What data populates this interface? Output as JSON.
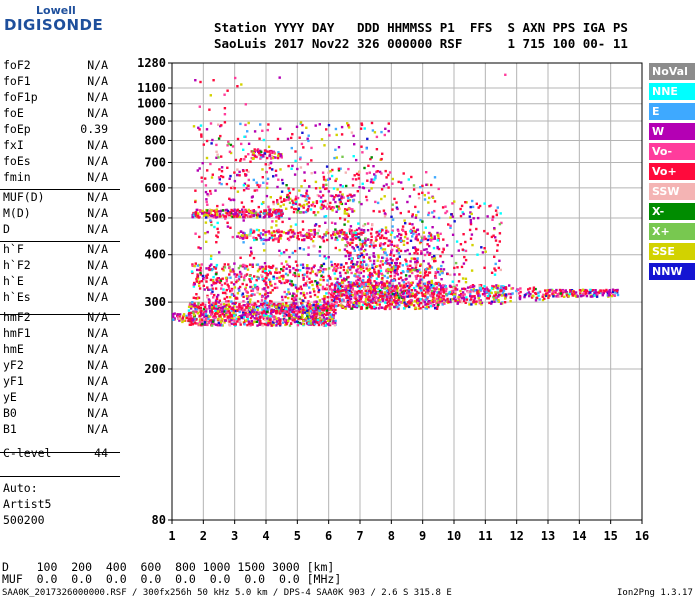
{
  "logo": {
    "top": "Lowell",
    "main": "DIGISONDE"
  },
  "header": {
    "line1": "Station YYYY DAY   DDD HHMMSS P1  FFS  S AXN PPS IGA PS",
    "line2": "SaoLuis 2017 Nov22 326 000000 RSF      1 715 100 00- 11"
  },
  "params": [
    {
      "name": "foF2",
      "value": "N/A"
    },
    {
      "name": "foF1",
      "value": "N/A"
    },
    {
      "name": "foF1p",
      "value": "N/A"
    },
    {
      "name": "foE",
      "value": "N/A"
    },
    {
      "name": "foEp",
      "value": "0.39"
    },
    {
      "name": "fxI",
      "value": "N/A"
    },
    {
      "name": "foEs",
      "value": "N/A"
    },
    {
      "name": "fmin",
      "value": "N/A"
    },
    {
      "name": "MUF(D)",
      "value": "N/A"
    },
    {
      "name": "M(D)",
      "value": "N/A"
    },
    {
      "name": "D",
      "value": "N/A"
    },
    {
      "name": "h`F",
      "value": "N/A"
    },
    {
      "name": "h`F2",
      "value": "N/A"
    },
    {
      "name": "h`E",
      "value": "N/A"
    },
    {
      "name": "h`Es",
      "value": "N/A"
    },
    {
      "name": "hmF2",
      "value": "N/A"
    },
    {
      "name": "hmF1",
      "value": "N/A"
    },
    {
      "name": "hmE",
      "value": "N/A"
    },
    {
      "name": "yF2",
      "value": "N/A"
    },
    {
      "name": "yF1",
      "value": "N/A"
    },
    {
      "name": "yE",
      "value": "N/A"
    },
    {
      "name": "B0",
      "value": "N/A"
    },
    {
      "name": "B1",
      "value": "N/A"
    },
    {
      "name": "C-level",
      "value": "44"
    }
  ],
  "auto": {
    "label": "Auto:",
    "artist": "Artist5",
    "version": "500200"
  },
  "legend": [
    {
      "label": "NoVal",
      "color": "#8c8c8c"
    },
    {
      "label": "NNE",
      "color": "#00ffff"
    },
    {
      "label": "E",
      "color": "#3ea9ff"
    },
    {
      "label": "W",
      "color": "#b400b4"
    },
    {
      "label": "Vo-",
      "color": "#ff3c9c"
    },
    {
      "label": "Vo+",
      "color": "#ff0a3c"
    },
    {
      "label": "SSW",
      "color": "#f4b4b4"
    },
    {
      "label": "X-",
      "color": "#008c00"
    },
    {
      "label": "X+",
      "color": "#78c850"
    },
    {
      "label": "SSE",
      "color": "#d2d200"
    },
    {
      "label": "NNW",
      "color": "#1414d2"
    }
  ],
  "footer": {
    "d_row": "D    100  200  400  600  800 1000 1500 3000 [km]",
    "muf_row": "MUF  0.0  0.0  0.0  0.0  0.0  0.0  0.0  0.0 [MHz]",
    "file_info": "SAA0K_2017326000000.RSF / 300fx256h 50 kHz 5.0 km / DPS-4 SAA0K 903 / 2.6 S 315.8 E",
    "version": "Ion2Png 1.3.17"
  },
  "chart_data": {
    "type": "scatter",
    "xlabel": "",
    "ylabel": "",
    "xlim": [
      1,
      16
    ],
    "ylim": [
      80,
      1280
    ],
    "y_scale": "log",
    "x_ticks": [
      1,
      2,
      3,
      4,
      5,
      6,
      7,
      8,
      9,
      10,
      11,
      12,
      13,
      14,
      15,
      16
    ],
    "y_ticks": [
      80,
      200,
      300,
      400,
      500,
      600,
      700,
      800,
      900,
      1000,
      1100,
      1280
    ],
    "grid": true,
    "regions": [
      {
        "x": [
          1.0,
          1.6
        ],
        "y": [
          268,
          282
        ],
        "n": 40
      },
      {
        "x": [
          1.5,
          6.2
        ],
        "y": [
          262,
          300
        ],
        "n": 1000
      },
      {
        "x": [
          6.0,
          9.5
        ],
        "y": [
          290,
          340
        ],
        "n": 600
      },
      {
        "x": [
          1.6,
          9.6
        ],
        "y": [
          300,
          380
        ],
        "n": 900
      },
      {
        "x": [
          9.5,
          11.8
        ],
        "y": [
          298,
          335
        ],
        "n": 250
      },
      {
        "x": [
          11.8,
          13.0
        ],
        "y": [
          305,
          330
        ],
        "n": 50
      },
      {
        "x": [
          12.9,
          15.2
        ],
        "y": [
          312,
          326
        ],
        "n": 160
      },
      {
        "x": [
          1.6,
          4.5
        ],
        "y": [
          505,
          530
        ],
        "n": 220
      },
      {
        "x": [
          4.3,
          6.8
        ],
        "y": [
          520,
          580
        ],
        "n": 120
      },
      {
        "x": [
          3.0,
          7.0
        ],
        "y": [
          440,
          470
        ],
        "n": 180
      },
      {
        "x": [
          6.5,
          9.5
        ],
        "y": [
          360,
          470
        ],
        "n": 300
      },
      {
        "x": [
          1.7,
          9.5
        ],
        "y": [
          380,
          680
        ],
        "n": 450
      },
      {
        "x": [
          1.7,
          8.0
        ],
        "y": [
          600,
          900
        ],
        "n": 200
      },
      {
        "x": [
          9.5,
          11.5
        ],
        "y": [
          340,
          560
        ],
        "n": 120
      },
      {
        "x": [
          3.5,
          4.5
        ],
        "y": [
          720,
          760
        ],
        "n": 60
      },
      {
        "x": [
          1.5,
          3.5
        ],
        "y": [
          850,
          1180
        ],
        "n": 12
      }
    ],
    "points": [
      {
        "x": 2.65,
        "y": 980
      },
      {
        "x": 2.65,
        "y": 945
      },
      {
        "x": 2.65,
        "y": 900
      },
      {
        "x": 3.05,
        "y": 1120
      },
      {
        "x": 2.2,
        "y": 1060
      },
      {
        "x": 11.6,
        "y": 1200
      },
      {
        "x": 4.4,
        "y": 1180
      },
      {
        "x": 1.8,
        "y": 870
      }
    ]
  }
}
